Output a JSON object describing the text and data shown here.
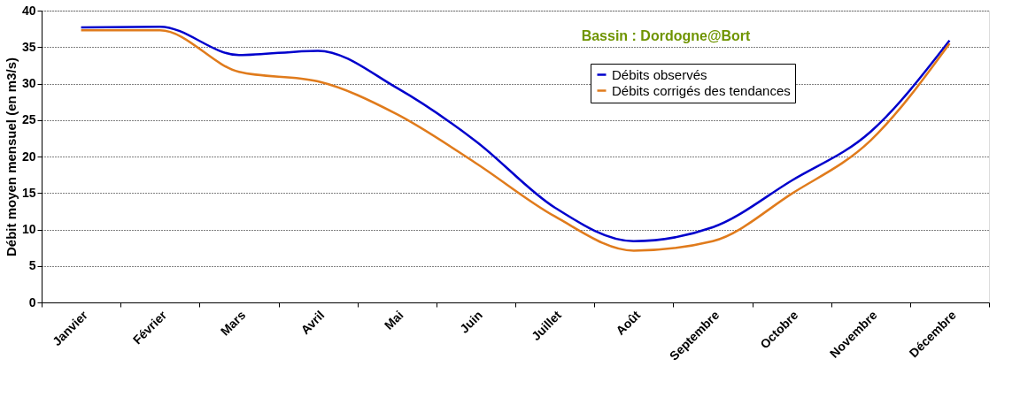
{
  "chart_data": {
    "type": "line",
    "ylabel": "Débit moyen mensuel (en m3/s)",
    "categories": [
      "Janvier",
      "Février",
      "Mars",
      "Avril",
      "Mai",
      "Juin",
      "Juillet",
      "Août",
      "Septembre",
      "Octobre",
      "Novembre",
      "Décembre"
    ],
    "series": [
      {
        "name": "Débits observés",
        "color": "#0000cc",
        "values": [
          37.7,
          37.8,
          33.9,
          34.5,
          29.4,
          22.1,
          13.0,
          8.4,
          10.3,
          16.7,
          23.4,
          35.9
        ]
      },
      {
        "name": "Débits corrigés des tendances",
        "color": "#e07b1c",
        "values": [
          37.3,
          37.3,
          31.6,
          30.3,
          25.8,
          19.1,
          11.8,
          7.1,
          8.4,
          14.9,
          22.2,
          35.5
        ]
      }
    ],
    "ylim": [
      0,
      40
    ],
    "yticks": [
      0,
      5,
      10,
      15,
      20,
      25,
      30,
      35,
      40
    ],
    "grid": "y",
    "legend": "top right",
    "marker": "none",
    "line_style": "solid",
    "annotations": [
      "Bassin : Dordogne@Bort"
    ]
  }
}
